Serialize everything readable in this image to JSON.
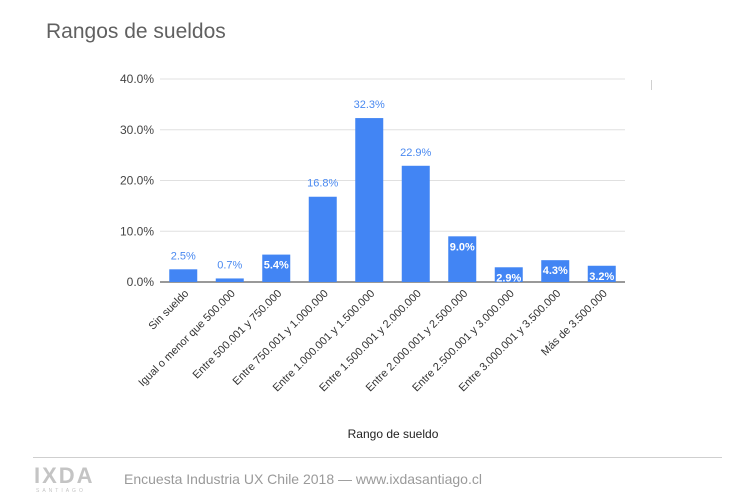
{
  "title": "Rangos de sueldos",
  "chart_data": {
    "type": "bar",
    "categories": [
      "Sin sueldo",
      "Igual o menor que 500.000",
      "Entre 500.001 y 750.000",
      "Entre 750.001 y 1.000.000",
      "Entre 1.000.001 y 1.500.000",
      "Entre 1.500.001 y 2.000.000",
      "Entre 2.000.001 y 2.500.000",
      "Entre 2.500.001 y 3.000.000",
      "Entre 3.000.001 y 3.500.000",
      "Más de 3.500.000"
    ],
    "values": [
      2.5,
      0.7,
      5.4,
      16.8,
      32.3,
      22.9,
      9.0,
      2.9,
      4.3,
      3.2
    ],
    "data_labels": [
      "2.5%",
      "0.7%",
      "5.4%",
      "16.8%",
      "32.3%",
      "22.9%",
      "9.0%",
      "2.9%",
      "4.3%",
      "3.2%"
    ],
    "label_inside": [
      false,
      false,
      true,
      false,
      false,
      false,
      true,
      true,
      true,
      true
    ],
    "xlabel": "Rango de sueldo",
    "ylabel": "",
    "ylim": [
      0,
      40
    ],
    "yticks": [
      0,
      10,
      20,
      30,
      40
    ],
    "ytick_labels": [
      "0.0%",
      "10.0%",
      "20.0%",
      "30.0%",
      "40.0%"
    ],
    "grid": true,
    "legend": "none",
    "bar_color": "#4285f4",
    "label_color": "#4a89f0"
  },
  "footer": {
    "logo": "IXDA",
    "logo_sub": "SANTIAGO",
    "text": "Encuesta Industria UX Chile 2018 — www.ixdasantiago.cl"
  }
}
